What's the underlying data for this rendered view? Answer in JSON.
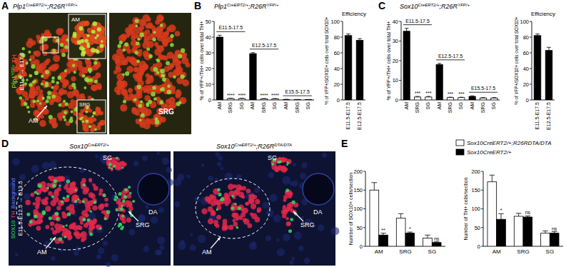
{
  "panel_labels": [
    "A",
    "B",
    "C",
    "D",
    "E"
  ],
  "headers": {
    "A": [
      {
        "text": "Plp1"
      },
      {
        "text": "CreERT2/+",
        "sup": true
      },
      {
        "text": ";R26R"
      },
      {
        "text": "YFP/+",
        "sup": true
      }
    ],
    "B": [
      {
        "text": "Plp1"
      },
      {
        "text": "CreERT2/+",
        "sup": true
      },
      {
        "text": ";R26R"
      },
      {
        "text": "YFP/+",
        "sup": true
      }
    ],
    "C": [
      {
        "text": "Sox10"
      },
      {
        "text": "CreERT2/+",
        "sup": true
      },
      {
        "text": ";R26R"
      },
      {
        "text": "YFP/+",
        "sup": true
      }
    ]
  },
  "images": {
    "A": {
      "side_label": [
        {
          "text": "Plp1"
        },
        {
          "text": "YFP+",
          "sup": true
        },
        {
          "text": " TH"
        }
      ],
      "time": "E11.5 → E17.5",
      "labels": {
        "main": "AM",
        "inset_top": "AM",
        "inset_bottom": "SRG",
        "right": "SRG"
      }
    },
    "D": {
      "titles": [
        [
          {
            "text": "Sox10"
          },
          {
            "text": "CreERT2/+",
            "sup": true
          }
        ],
        [
          {
            "text": "Sox10"
          },
          {
            "text": "CreERT2/+",
            "sup": true
          },
          {
            "text": ";R26R"
          },
          {
            "text": "DTA/DTA",
            "sup": true
          }
        ]
      ],
      "side_label": [
        "SOX10",
        "TH",
        "Background"
      ],
      "time": "E11.5-E12.5 → E13.5",
      "labels": [
        "SG",
        "SRG",
        "AM",
        "DA"
      ]
    }
  },
  "chart_data": [
    {
      "type": "bar",
      "y_label": "% of YFP+/TH+ cells over total TH+",
      "categories": [
        "AM",
        "SRG",
        "SG",
        "AM",
        "SRG",
        "SG",
        "AM",
        "SRG",
        "SG"
      ],
      "group_labels": [
        "E11.5-17.5",
        "E12.5-17.5",
        "E15.5-17.5"
      ],
      "series": [
        {
          "values": [
            40,
            0.9,
            0.9,
            29.5,
            0.7,
            0.7,
            0.3,
            0.2,
            0.2
          ],
          "errors": [
            1.2,
            0.2,
            0.2,
            0.6,
            0.2,
            0.2,
            0.1,
            0.1,
            0.1
          ],
          "colors": [
            "#000000",
            "#ffffff",
            "#ffffff",
            "#000000",
            "#ffffff",
            "#ffffff",
            "#000000",
            "#ffffff",
            "#ffffff"
          ]
        }
      ],
      "significance": [
        null,
        "****",
        "****",
        null,
        "****",
        "****",
        null,
        null,
        null
      ],
      "ylim": [
        0,
        50
      ],
      "yticks": [
        0,
        10,
        20,
        30,
        40,
        50
      ]
    },
    {
      "type": "bar",
      "title": "Efficiency",
      "y_label": "% of YFP+/SOX10+ cells over total SOX10+",
      "categories": [
        "E11.5-E17.5",
        "E12.5-E17.5"
      ],
      "series": [
        {
          "values": [
            82,
            76
          ],
          "errors": [
            2,
            2
          ],
          "color": "#000000"
        }
      ],
      "ylim": [
        0,
        100
      ],
      "yticks": [
        0,
        20,
        40,
        60,
        80,
        100
      ]
    },
    {
      "type": "bar",
      "y_label": "% of YFP+/TH+ cells over total TH+",
      "categories": [
        "AM",
        "SRG",
        "SG",
        "AM",
        "SRG",
        "SG",
        "AM",
        "SRG",
        "SG"
      ],
      "group_labels": [
        "E11.5-17.5",
        "E12.5-17.5",
        "E15.5-17.5"
      ],
      "series": [
        {
          "values": [
            35,
            1.5,
            1.5,
            18,
            1.2,
            1.2,
            1.8,
            1,
            1
          ],
          "errors": [
            1.5,
            0.3,
            0.3,
            0.6,
            0.2,
            0.2,
            0.3,
            0.2,
            0.2
          ],
          "colors": [
            "#000000",
            "#ffffff",
            "#ffffff",
            "#000000",
            "#ffffff",
            "#ffffff",
            "#000000",
            "#ffffff",
            "#ffffff"
          ]
        }
      ],
      "significance": [
        null,
        "***",
        "***",
        null,
        "***",
        "***",
        null,
        null,
        null
      ],
      "ylim": [
        0,
        40
      ],
      "yticks": [
        0,
        10,
        20,
        30,
        40
      ]
    },
    {
      "type": "bar",
      "title": "Efficiency",
      "y_label": "% of YFP+/SOX10+ cells over total SOX10+",
      "categories": [
        "E11.5-E17.5",
        "E12.5-E17.5"
      ],
      "series": [
        {
          "values": [
            82,
            63
          ],
          "errors": [
            2,
            4
          ],
          "color": "#000000"
        }
      ],
      "ylim": [
        0,
        100
      ],
      "yticks": [
        0,
        20,
        40,
        60,
        80,
        100
      ]
    },
    {
      "type": "bar",
      "y_label": "Number of SOX10+ cells/section",
      "categories": [
        "AM",
        "SRG",
        "SG"
      ],
      "series": [
        {
          "color": "#ffffff",
          "values": [
            150,
            75,
            22
          ],
          "errors": [
            20,
            12,
            8
          ]
        },
        {
          "color": "#000000",
          "values": [
            30,
            35,
            10
          ],
          "errors": [
            5,
            3,
            2
          ]
        }
      ],
      "significance": [
        "**",
        "*",
        "ns"
      ],
      "ylim": [
        0,
        200
      ],
      "yticks": [
        0,
        50,
        100,
        150,
        200
      ]
    },
    {
      "type": "bar",
      "y_label": "Number of TH+ cells/section",
      "categories": [
        "AM",
        "SRG",
        "SG"
      ],
      "series": [
        {
          "name": "Sox10CreERT2/+;R26RDTA/DTA",
          "color": "#ffffff",
          "values": [
            172,
            80,
            35
          ],
          "errors": [
            18,
            8,
            6
          ]
        },
        {
          "name": "Sox10CreERT2/+",
          "color": "#000000",
          "values": [
            72,
            78,
            35
          ],
          "errors": [
            15,
            3,
            4
          ]
        }
      ],
      "significance": [
        "*",
        "ns",
        "ns"
      ],
      "legend": "top-right",
      "ylim": [
        0,
        200
      ],
      "yticks": [
        0,
        50,
        100,
        150,
        200
      ]
    }
  ]
}
